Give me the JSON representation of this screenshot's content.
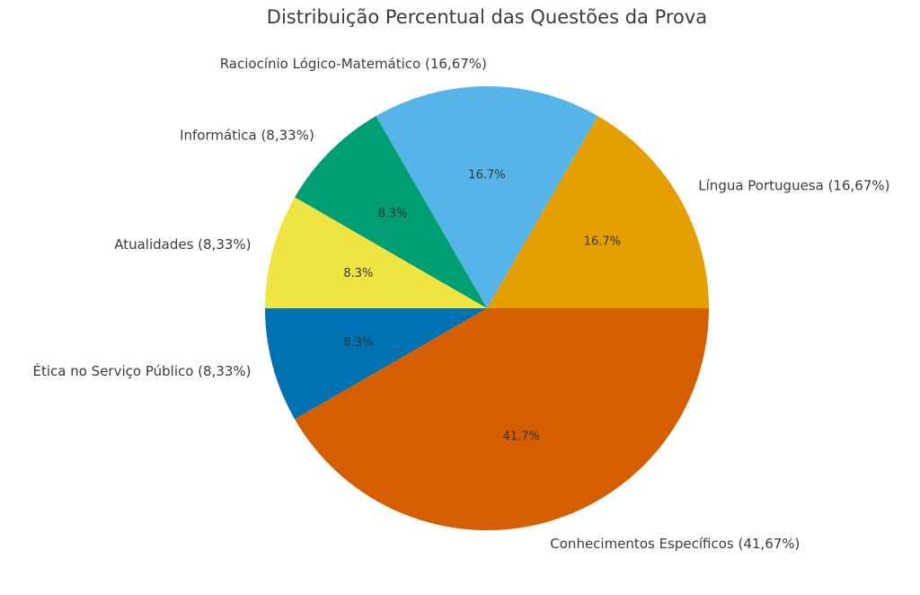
{
  "chart_data": {
    "type": "pie",
    "title": "Distribuição Percentual das Questões da Prova",
    "categories": [
      "Língua Portuguesa (16,67%)",
      "Raciocínio Lógico-Matemático (16,67%)",
      "Informática (8,33%)",
      "Atualidades (8,33%)",
      "Ética no Serviço Público (8,33%)",
      "Conhecimentos Específicos (41,67%)"
    ],
    "values": [
      16.67,
      16.67,
      8.33,
      8.33,
      8.33,
      41.67
    ],
    "value_labels": [
      "16.7%",
      "16.7%",
      "8.3%",
      "8.3%",
      "8.3%",
      "41.7%"
    ],
    "colors": [
      "#e69f00",
      "#56b4e9",
      "#009e73",
      "#f0e442",
      "#0072b2",
      "#d55e00"
    ]
  }
}
